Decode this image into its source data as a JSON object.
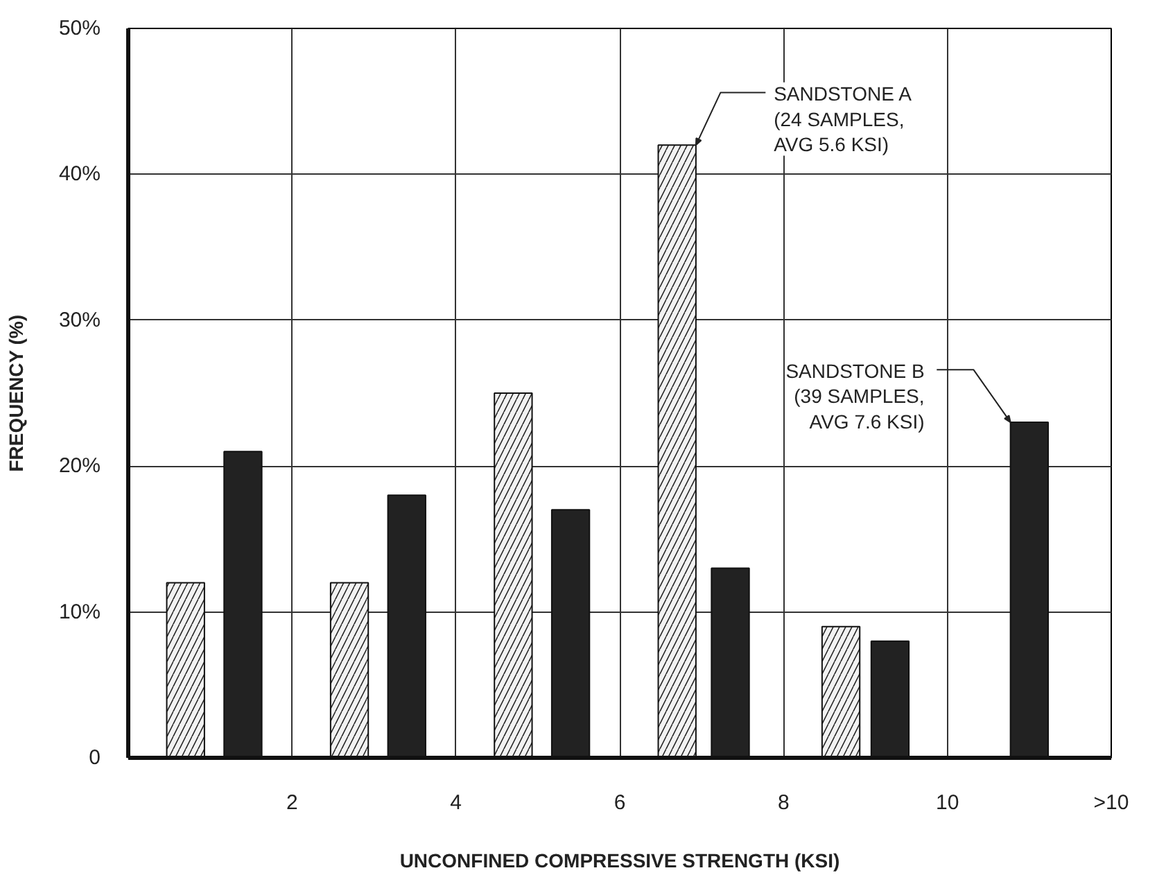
{
  "chart_data": {
    "type": "bar",
    "xlabel": "UNCONFINED COMPRESSIVE STRENGTH (KSI)",
    "ylabel": "FREQUENCY (%)",
    "series": [
      {
        "color": "#f2f2f2",
        "x": [
          0.7,
          2.7,
          4.7,
          6.7,
          8.7
        ],
        "values": [
          12,
          12,
          25,
          42,
          9
        ]
      },
      {
        "color": "#222222",
        "x": [
          1.4,
          3.4,
          5.4,
          7.35,
          9.3,
          11.0
        ],
        "values": [
          21,
          18,
          17,
          13,
          8,
          23
        ]
      }
    ],
    "xlim": [
      0,
      12
    ],
    "xticks": [
      2,
      4,
      6,
      8,
      10,
      {
        "value": 12,
        "label": ">10"
      }
    ],
    "ylim": [
      0,
      50
    ],
    "yticks": [
      0,
      {
        "value": 10,
        "label": "10%"
      },
      {
        "value": 20,
        "label": "20%"
      },
      {
        "value": 30,
        "label": "30%"
      },
      {
        "value": 40,
        "label": "40%"
      },
      {
        "value": 50,
        "label": "50%"
      }
    ],
    "grid": true,
    "annotations": [
      {
        "text": "SANDSTONE A\n(24 SAMPLES,\nAVG 5.6 KSI)",
        "x": 6.93,
        "y": 42
      },
      {
        "text": "SANDSTONE B\n(39 SAMPLES,\nAVG 7.6 KSI)",
        "x": 10.77,
        "y": 23
      }
    ]
  }
}
